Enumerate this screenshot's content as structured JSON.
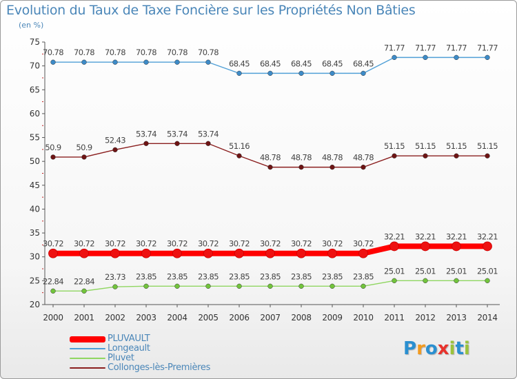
{
  "title": "Evolution du Taux de Taxe Foncière sur les Propriétés Non Bâties",
  "subtitle": "(en %)",
  "chart_data": {
    "type": "line",
    "title": "Evolution du Taux de Taxe Foncière sur les Propriétés Non Bâties",
    "ylabel": "(en %)",
    "xlabel": "",
    "ylim": [
      20,
      75
    ],
    "yticks": [
      "20",
      "25",
      "30",
      "35",
      "40",
      "45",
      "50",
      "55",
      "60",
      "65",
      "70",
      "75"
    ],
    "categories": [
      "2000",
      "2001",
      "2002",
      "2003",
      "2004",
      "2005",
      "2006",
      "2007",
      "2008",
      "2009",
      "2010",
      "2011",
      "2012",
      "2013",
      "2014"
    ],
    "grid": false,
    "legend": "bottom-left",
    "series": [
      {
        "name": "Longeault",
        "color": "#4f9fd6",
        "dot": "#3d8bc8",
        "values": [
          70.78,
          70.78,
          70.78,
          70.78,
          70.78,
          70.78,
          68.45,
          68.45,
          68.45,
          68.45,
          68.45,
          71.77,
          71.77,
          71.77,
          71.77
        ],
        "labels": [
          "70.78",
          "70.78",
          "70.78",
          "70.78",
          "70.78",
          "70.78",
          "68.45",
          "68.45",
          "68.45",
          "68.45",
          "68.45",
          "71.77",
          "71.77",
          "71.77",
          "71.77"
        ]
      },
      {
        "name": "Collonges-lès-Premières",
        "color": "#8a1e1e",
        "dot": "#6e1414",
        "values": [
          50.9,
          50.9,
          52.43,
          53.74,
          53.74,
          53.74,
          51.16,
          48.78,
          48.78,
          48.78,
          48.78,
          51.15,
          51.15,
          51.15,
          51.15
        ],
        "labels": [
          "50.9",
          "50.9",
          "52.43",
          "53.74",
          "53.74",
          "53.74",
          "51.16",
          "48.78",
          "48.78",
          "48.78",
          "48.78",
          "51.15",
          "51.15",
          "51.15",
          "51.15"
        ]
      },
      {
        "name": "PLUVAULT",
        "color": "#ff0000",
        "dot": "#ee1111",
        "values": [
          30.72,
          30.72,
          30.72,
          30.72,
          30.72,
          30.72,
          30.72,
          30.72,
          30.72,
          30.72,
          30.72,
          32.21,
          32.21,
          32.21,
          32.21
        ],
        "labels": [
          "30.72",
          "30.72",
          "30.72",
          "30.72",
          "30.72",
          "30.72",
          "30.72",
          "30.72",
          "30.72",
          "30.72",
          "30.72",
          "32.21",
          "32.21",
          "32.21",
          "32.21"
        ]
      },
      {
        "name": "Pluvet",
        "color": "#8fd660",
        "dot": "#72c43c",
        "values": [
          22.84,
          22.84,
          23.73,
          23.85,
          23.85,
          23.85,
          23.85,
          23.85,
          23.85,
          23.85,
          23.85,
          25.01,
          25.01,
          25.01,
          25.01
        ],
        "labels": [
          "22.84",
          "22.84",
          "23.73",
          "23.85",
          "23.85",
          "23.85",
          "23.85",
          "23.85",
          "23.85",
          "23.85",
          "23.85",
          "25.01",
          "25.01",
          "25.01",
          "25.01"
        ]
      }
    ]
  },
  "legend": {
    "items": [
      {
        "label": "PLUVAULT",
        "color": "#ff0000",
        "text_color": "#4a86b8"
      },
      {
        "label": "Longeault",
        "color": "#4f9fd6",
        "text_color": "#4a86b8"
      },
      {
        "label": "Pluvet",
        "color": "#8fd660",
        "text_color": "#4a86b8"
      },
      {
        "label": "Collonges-lès-Premières",
        "color": "#8a1e1e",
        "text_color": "#4a86b8"
      }
    ]
  },
  "logo": {
    "letters": [
      "P",
      "r",
      "o",
      "x",
      "i",
      "t",
      "i"
    ],
    "colors": [
      "#2a8fd0",
      "#f39a1e",
      "#2a8fd0",
      "#e8322c",
      "#9bc33c",
      "#2a8fd0",
      "#9bc33c"
    ]
  }
}
